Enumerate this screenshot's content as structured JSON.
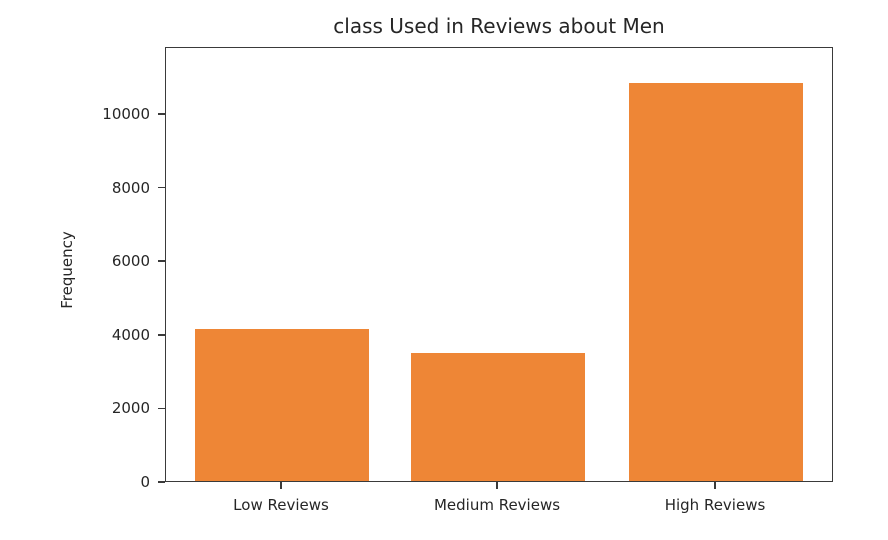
{
  "chart_data": {
    "type": "bar",
    "title": "class Used in Reviews about Men",
    "xlabel": "",
    "ylabel": "Frequency",
    "categories": [
      "Low Reviews",
      "Medium Reviews",
      "High Reviews"
    ],
    "values": [
      4190,
      3530,
      10870
    ],
    "bar_color": "#ee8636",
    "ylim": [
      0,
      11400
    ],
    "yticks": [
      0,
      2000,
      4000,
      6000,
      8000,
      10000
    ],
    "ytick_labels": [
      "0",
      "2000",
      "4000",
      "6000",
      "8000",
      "10000"
    ],
    "grid": false,
    "legend": null
  }
}
